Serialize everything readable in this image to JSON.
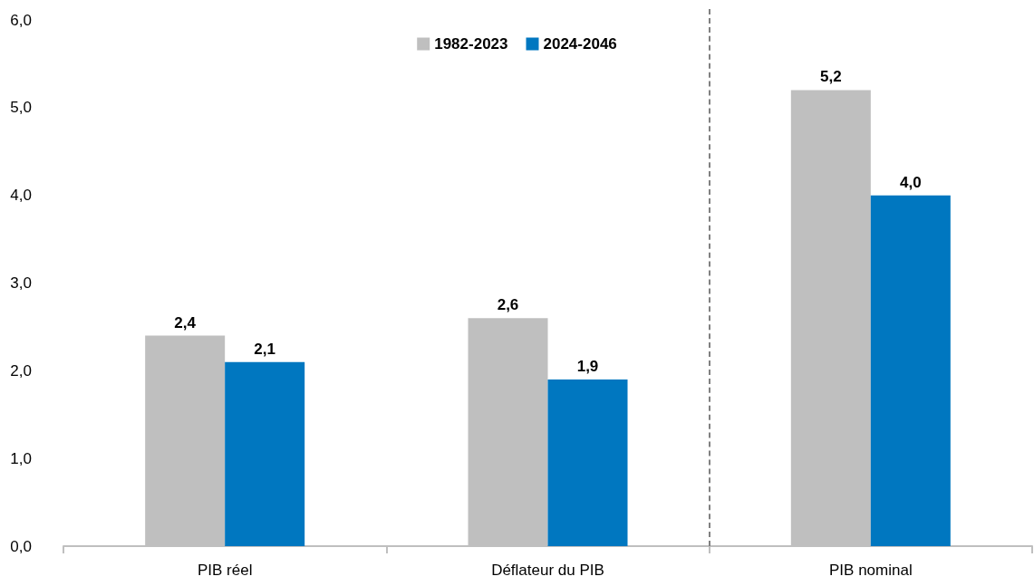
{
  "chart_data": {
    "type": "bar",
    "categories": [
      "PIB réel",
      "Déflateur du PIB",
      "PIB nominal"
    ],
    "series": [
      {
        "name": "1982-2023",
        "color": "#bfbfbf",
        "values": [
          2.4,
          2.6,
          5.2
        ],
        "value_labels": [
          "2,4",
          "2,6",
          "5,2"
        ]
      },
      {
        "name": "2024-2046",
        "color": "#0077c0",
        "values": [
          2.1,
          1.9,
          4.0
        ],
        "value_labels": [
          "2,1",
          "1,9",
          "4,0"
        ]
      }
    ],
    "ylim": [
      0,
      6
    ],
    "yticks": [
      {
        "value": 0,
        "label": "0,0"
      },
      {
        "value": 1,
        "label": "1,0"
      },
      {
        "value": 2,
        "label": "2,0"
      },
      {
        "value": 3,
        "label": "3,0"
      },
      {
        "value": 4,
        "label": "4,0"
      },
      {
        "value": 5,
        "label": "5,0"
      },
      {
        "value": 6,
        "label": "6,0"
      }
    ],
    "grid": false,
    "legend": "top"
  }
}
